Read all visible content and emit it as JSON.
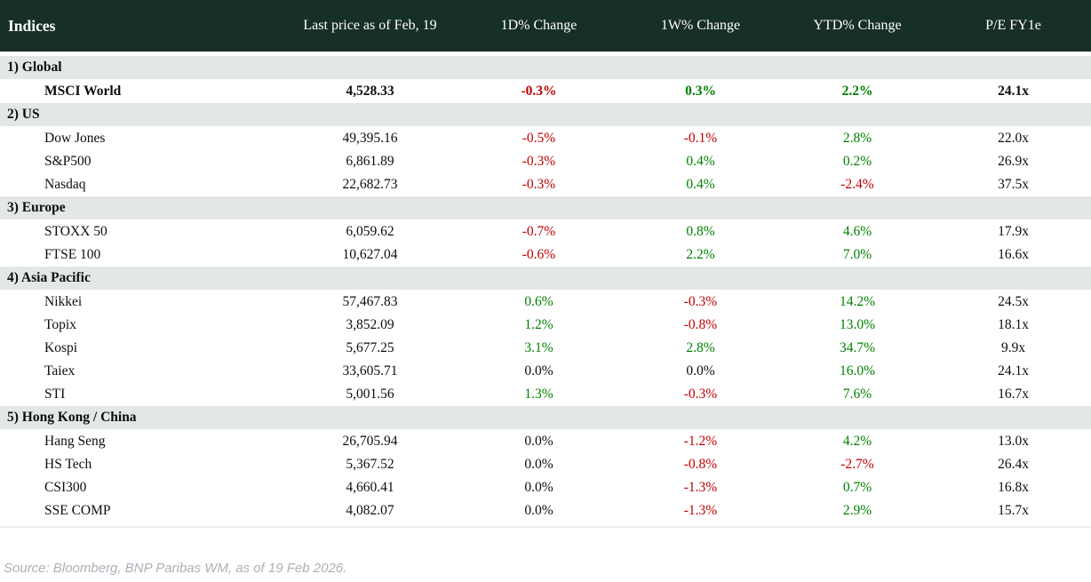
{
  "header": {
    "col_indices": "Indices",
    "columns": [
      "Last price as of Feb, 19",
      "1D% Change",
      "1W% Change",
      "YTD% Change",
      "P/E FY1e"
    ]
  },
  "sections": [
    {
      "label": "1) Global",
      "rows": [
        {
          "name": "MSCI World",
          "bold": true,
          "last": "4,528.33",
          "d1": "-0.3%",
          "d1_tone": "neg",
          "w1": "0.3%",
          "w1_tone": "pos",
          "ytd": "2.2%",
          "ytd_tone": "pos",
          "pe": "24.1x"
        }
      ]
    },
    {
      "label": "2) US",
      "rows": [
        {
          "name": "Dow Jones",
          "bold": false,
          "last": "49,395.16",
          "d1": "-0.5%",
          "d1_tone": "neg",
          "w1": "-0.1%",
          "w1_tone": "neg",
          "ytd": "2.8%",
          "ytd_tone": "pos",
          "pe": "22.0x"
        },
        {
          "name": "S&P500",
          "bold": false,
          "last": "6,861.89",
          "d1": "-0.3%",
          "d1_tone": "neg",
          "w1": "0.4%",
          "w1_tone": "pos",
          "ytd": "0.2%",
          "ytd_tone": "pos",
          "pe": "26.9x"
        },
        {
          "name": "Nasdaq",
          "bold": false,
          "last": "22,682.73",
          "d1": "-0.3%",
          "d1_tone": "neg",
          "w1": "0.4%",
          "w1_tone": "pos",
          "ytd": "-2.4%",
          "ytd_tone": "neg",
          "pe": "37.5x"
        }
      ]
    },
    {
      "label": "3) Europe",
      "rows": [
        {
          "name": "STOXX 50",
          "bold": false,
          "last": "6,059.62",
          "d1": "-0.7%",
          "d1_tone": "neg",
          "w1": "0.8%",
          "w1_tone": "pos",
          "ytd": "4.6%",
          "ytd_tone": "pos",
          "pe": "17.9x"
        },
        {
          "name": "FTSE 100",
          "bold": false,
          "last": "10,627.04",
          "d1": "-0.6%",
          "d1_tone": "neg",
          "w1": "2.2%",
          "w1_tone": "pos",
          "ytd": "7.0%",
          "ytd_tone": "pos",
          "pe": "16.6x"
        }
      ]
    },
    {
      "label": "4) Asia Pacific",
      "rows": [
        {
          "name": "Nikkei",
          "bold": false,
          "last": "57,467.83",
          "d1": "0.6%",
          "d1_tone": "pos",
          "w1": "-0.3%",
          "w1_tone": "neg",
          "ytd": "14.2%",
          "ytd_tone": "pos",
          "pe": "24.5x"
        },
        {
          "name": "Topix",
          "bold": false,
          "last": "3,852.09",
          "d1": "1.2%",
          "d1_tone": "pos",
          "w1": "-0.8%",
          "w1_tone": "neg",
          "ytd": "13.0%",
          "ytd_tone": "pos",
          "pe": "18.1x"
        },
        {
          "name": "Kospi",
          "bold": false,
          "last": "5,677.25",
          "d1": "3.1%",
          "d1_tone": "pos",
          "w1": "2.8%",
          "w1_tone": "pos",
          "ytd": "34.7%",
          "ytd_tone": "pos",
          "pe": "9.9x"
        },
        {
          "name": "Taiex",
          "bold": false,
          "last": "33,605.71",
          "d1": "0.0%",
          "d1_tone": "flat",
          "w1": "0.0%",
          "w1_tone": "flat",
          "ytd": "16.0%",
          "ytd_tone": "pos",
          "pe": "24.1x"
        },
        {
          "name": "STI",
          "bold": false,
          "last": "5,001.56",
          "d1": "1.3%",
          "d1_tone": "pos",
          "w1": "-0.3%",
          "w1_tone": "neg",
          "ytd": "7.6%",
          "ytd_tone": "pos",
          "pe": "16.7x"
        }
      ]
    },
    {
      "label": "5) Hong Kong / China",
      "rows": [
        {
          "name": "Hang Seng",
          "bold": false,
          "last": "26,705.94",
          "d1": "0.0%",
          "d1_tone": "flat",
          "w1": "-1.2%",
          "w1_tone": "neg",
          "ytd": "4.2%",
          "ytd_tone": "pos",
          "pe": "13.0x"
        },
        {
          "name": "HS Tech",
          "bold": false,
          "last": "5,367.52",
          "d1": "0.0%",
          "d1_tone": "flat",
          "w1": "-0.8%",
          "w1_tone": "neg",
          "ytd": "-2.7%",
          "ytd_tone": "neg",
          "pe": "26.4x"
        },
        {
          "name": "CSI300",
          "bold": false,
          "last": "4,660.41",
          "d1": "0.0%",
          "d1_tone": "flat",
          "w1": "-1.3%",
          "w1_tone": "neg",
          "ytd": "0.7%",
          "ytd_tone": "pos",
          "pe": "16.8x"
        },
        {
          "name": "SSE COMP",
          "bold": false,
          "last": "4,082.07",
          "d1": "0.0%",
          "d1_tone": "flat",
          "w1": "-1.3%",
          "w1_tone": "neg",
          "ytd": "2.9%",
          "ytd_tone": "pos",
          "pe": "15.7x"
        }
      ]
    }
  ],
  "footer": "Source: Bloomberg, BNP Paribas WM, as of 19 Feb 2026.",
  "colors": {
    "header_bg": "#172f29",
    "section_bg": "#e3e8e4",
    "negative": "#c00000",
    "positive": "#008000",
    "footer_text": "#a9b1b9"
  }
}
